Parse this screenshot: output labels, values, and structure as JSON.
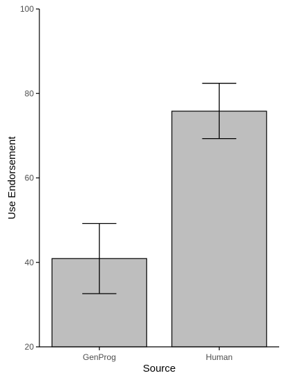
{
  "chart_data": {
    "type": "bar",
    "categories": [
      "GenProg",
      "Human"
    ],
    "values": [
      40.9,
      75.8
    ],
    "error_low": [
      32.6,
      69.3
    ],
    "error_high": [
      49.2,
      82.4
    ],
    "xlabel": "Source",
    "ylabel": "Use Endorsement",
    "ylim": [
      20,
      100
    ],
    "yticks": [
      20,
      40,
      60,
      80,
      100
    ],
    "grid": false,
    "legend": "none",
    "bar_color": "#bebebe",
    "edge_color": "#000000"
  }
}
